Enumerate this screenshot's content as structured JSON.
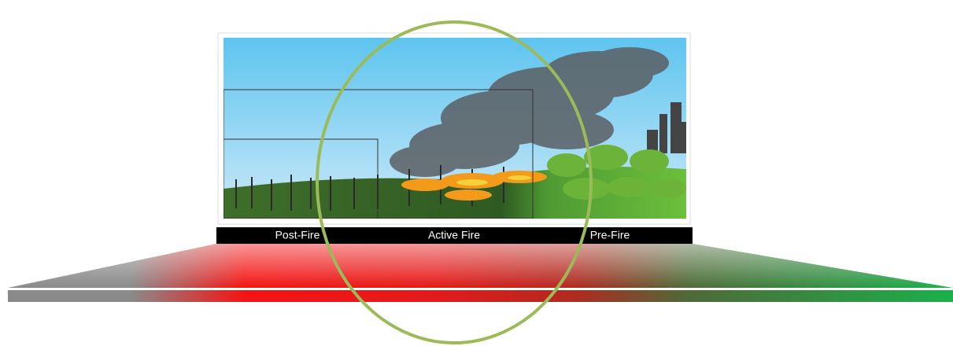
{
  "labels": [
    "Post-Fire",
    "Active Fire",
    "Pre-Fire"
  ]
}
